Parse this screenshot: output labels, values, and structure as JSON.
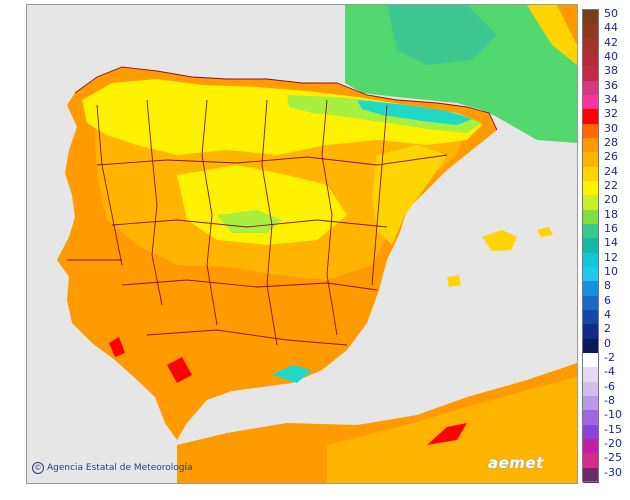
{
  "credit": {
    "symbol": "©",
    "text": "Agencia Estatal de Meteorología"
  },
  "logo": {
    "text": "aemet"
  },
  "legend": {
    "labels": [
      "50",
      "44",
      "42",
      "40",
      "38",
      "36",
      "34",
      "32",
      "30",
      "28",
      "26",
      "24",
      "22",
      "20",
      "18",
      "16",
      "14",
      "12",
      "10",
      "8",
      "6",
      "4",
      "2",
      "0",
      "-2",
      "-4",
      "-6",
      "-8",
      "-10",
      "-15",
      "-20",
      "-25",
      "-30"
    ],
    "colors": [
      "#7a3d1c",
      "#8e3a1f",
      "#a13428",
      "#b32c35",
      "#c52a45",
      "#d63a7e",
      "#ff3399",
      "#ff0000",
      "#ff6a00",
      "#ff9a00",
      "#ffb400",
      "#ffd400",
      "#fff200",
      "#c8f028",
      "#7ee040",
      "#38c88c",
      "#18b8a8",
      "#10c8d8",
      "#20c8f0",
      "#1890e0",
      "#1868c8",
      "#1448a8",
      "#102c88",
      "#0a1a5c",
      "#ffffff",
      "#e6d9f5",
      "#d2bef0",
      "#b89ae8",
      "#9f66e2",
      "#8a44d6",
      "#c21fa6",
      "#d42a8a",
      "#6a2a6a"
    ]
  },
  "colors": {
    "sea": "#e6e6e6",
    "hot": "#ff8c00",
    "warm": "#ffb400",
    "mild": "#fff200",
    "cool": "#a8f040",
    "cold": "#20d8c8",
    "extreme": "#ff0000",
    "border": "#8a1020"
  }
}
